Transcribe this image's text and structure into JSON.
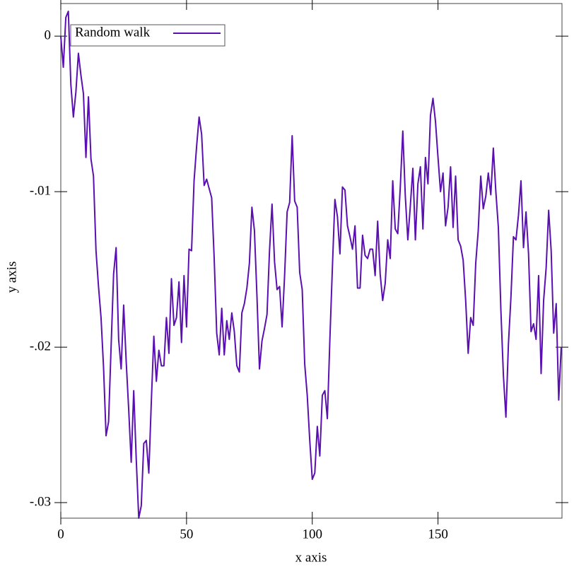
{
  "chart_data": {
    "type": "line",
    "xlabel": "x axis",
    "ylabel": "y axis",
    "x": [
      0,
      1,
      2,
      3,
      4,
      5,
      6,
      7,
      8,
      9,
      10,
      11,
      12,
      13,
      14,
      15,
      16,
      17,
      18,
      19,
      20,
      21,
      22,
      23,
      24,
      25,
      26,
      27,
      28,
      29,
      30,
      31,
      32,
      33,
      34,
      35,
      36,
      37,
      38,
      39,
      40,
      41,
      42,
      43,
      44,
      45,
      46,
      47,
      48,
      49,
      50,
      51,
      52,
      53,
      54,
      55,
      56,
      57,
      58,
      59,
      60,
      61,
      62,
      63,
      64,
      65,
      66,
      67,
      68,
      69,
      70,
      71,
      72,
      73,
      74,
      75,
      76,
      77,
      78,
      79,
      80,
      81,
      82,
      83,
      84,
      85,
      86,
      87,
      88,
      89,
      90,
      91,
      92,
      93,
      94,
      95,
      96,
      97,
      98,
      99,
      100,
      101,
      102,
      103,
      104,
      105,
      106,
      107,
      108,
      109,
      110,
      111,
      112,
      113,
      114,
      115,
      116,
      117,
      118,
      119,
      120,
      121,
      122,
      123,
      124,
      125,
      126,
      127,
      128,
      129,
      130,
      131,
      132,
      133,
      134,
      135,
      136,
      137,
      138,
      139,
      140,
      141,
      142,
      143,
      144,
      145,
      146,
      147,
      148,
      149,
      150,
      151,
      152,
      153,
      154,
      155,
      156,
      157,
      158,
      159,
      160,
      161,
      162,
      163,
      164,
      165,
      166,
      167,
      168,
      169,
      170,
      171,
      172,
      173,
      174,
      175,
      176,
      177,
      178,
      179,
      180,
      181,
      182,
      183,
      184,
      185,
      186,
      187,
      188,
      189,
      190,
      191,
      192,
      193,
      194,
      195,
      196,
      197,
      198,
      199
    ],
    "series": [
      {
        "name": "Random walk",
        "color": "#5a10b0",
        "values": [
          0,
          -0.002,
          0.0012,
          0.0016,
          -0.0031,
          -0.0052,
          -0.0036,
          -0.0011,
          -0.0025,
          -0.0037,
          -0.0078,
          -0.0039,
          -0.0079,
          -0.009,
          -0.0138,
          -0.0161,
          -0.0181,
          -0.0213,
          -0.0257,
          -0.0248,
          -0.02,
          -0.0153,
          -0.0136,
          -0.0195,
          -0.0214,
          -0.0173,
          -0.0209,
          -0.024,
          -0.0274,
          -0.0228,
          -0.0272,
          -0.031,
          -0.0302,
          -0.0262,
          -0.026,
          -0.0281,
          -0.0235,
          -0.0193,
          -0.0222,
          -0.0202,
          -0.0212,
          -0.0212,
          -0.0181,
          -0.0204,
          -0.0156,
          -0.0186,
          -0.0181,
          -0.0158,
          -0.0197,
          -0.0154,
          -0.0187,
          -0.0137,
          -0.0138,
          -0.0093,
          -0.0071,
          -0.0052,
          -0.0063,
          -0.0096,
          -0.0092,
          -0.0098,
          -0.0104,
          -0.0143,
          -0.0191,
          -0.0205,
          -0.0175,
          -0.0205,
          -0.0183,
          -0.0195,
          -0.0178,
          -0.019,
          -0.0212,
          -0.0216,
          -0.0178,
          -0.0172,
          -0.0162,
          -0.0146,
          -0.011,
          -0.0125,
          -0.0167,
          -0.0214,
          -0.0196,
          -0.0188,
          -0.0179,
          -0.0138,
          -0.0108,
          -0.0145,
          -0.0163,
          -0.0161,
          -0.0187,
          -0.0154,
          -0.0113,
          -0.0107,
          -0.0064,
          -0.0106,
          -0.011,
          -0.0152,
          -0.0163,
          -0.0211,
          -0.0231,
          -0.026,
          -0.0285,
          -0.0281,
          -0.0251,
          -0.027,
          -0.0231,
          -0.0228,
          -0.0246,
          -0.0195,
          -0.0149,
          -0.0105,
          -0.0116,
          -0.014,
          -0.0097,
          -0.0099,
          -0.0122,
          -0.0129,
          -0.0137,
          -0.0122,
          -0.0162,
          -0.0162,
          -0.0128,
          -0.0141,
          -0.0143,
          -0.0137,
          -0.0137,
          -0.0154,
          -0.0119,
          -0.0153,
          -0.017,
          -0.0159,
          -0.0131,
          -0.0143,
          -0.0093,
          -0.0124,
          -0.0127,
          -0.0097,
          -0.0061,
          -0.0103,
          -0.0131,
          -0.0109,
          -0.0085,
          -0.0131,
          -0.0095,
          -0.0084,
          -0.0124,
          -0.0078,
          -0.0095,
          -0.0051,
          -0.004,
          -0.0055,
          -0.0078,
          -0.01,
          -0.0088,
          -0.0122,
          -0.011,
          -0.0084,
          -0.0123,
          -0.009,
          -0.0131,
          -0.0135,
          -0.0144,
          -0.017,
          -0.0204,
          -0.0181,
          -0.0186,
          -0.0146,
          -0.0125,
          -0.009,
          -0.0111,
          -0.0103,
          -0.0088,
          -0.0102,
          -0.0072,
          -0.01,
          -0.0123,
          -0.0176,
          -0.0218,
          -0.0245,
          -0.0198,
          -0.0168,
          -0.0129,
          -0.0131,
          -0.0115,
          -0.0093,
          -0.0136,
          -0.0113,
          -0.014,
          -0.019,
          -0.0185,
          -0.0195,
          -0.0154,
          -0.0217,
          -0.017,
          -0.0149,
          -0.0112,
          -0.0138,
          -0.0191,
          -0.0172,
          -0.0234,
          -0.02
        ]
      }
    ],
    "xlim": [
      0,
      199.3
    ],
    "ylim": [
      -0.031,
      0.0021
    ],
    "xticks": [
      0,
      50,
      100,
      150
    ],
    "yticks": [
      0,
      {
        "value": -0.01,
        "label": "-.01"
      },
      {
        "value": -0.02,
        "label": "-.02"
      },
      {
        "value": -0.03,
        "label": "-.03"
      }
    ],
    "legend": "top-left"
  }
}
